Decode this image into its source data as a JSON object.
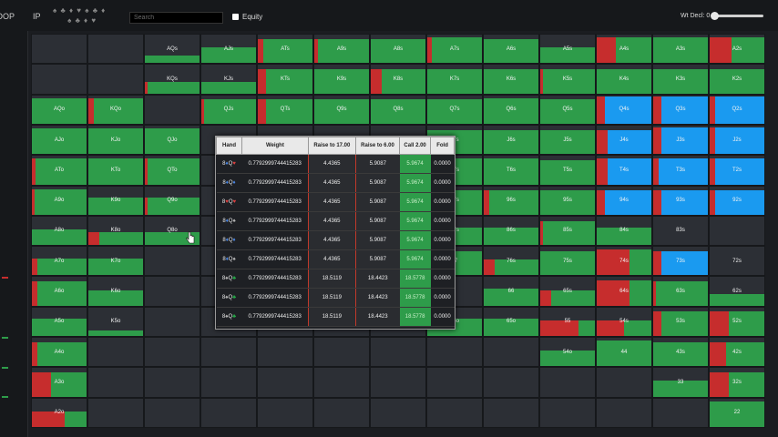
{
  "header": {
    "position": "IP",
    "left_label": "OOP",
    "search_placeholder": "Search",
    "equity_label": "Equity",
    "weight_label": "Wt Decl: 0"
  },
  "colors": {
    "green": "#2e9c4a",
    "red": "#c62d2d",
    "blue": "#1a9af0",
    "empty": "#2c2f35"
  },
  "grid": {
    "rows": [
      [
        "",
        "",
        "AQs",
        "AJs",
        "ATs",
        "A9s",
        "A8s",
        "A7s",
        "A6s",
        "A5s",
        "A4s",
        "A3s",
        "A2s"
      ],
      [
        "",
        "",
        "KQs",
        "KJs",
        "KTs",
        "K9s",
        "K8s",
        "K7s",
        "K6s",
        "K5s",
        "K4s",
        "K3s",
        "K2s"
      ],
      [
        "AQo",
        "KQo",
        "",
        "QJs",
        "QTs",
        "Q9s",
        "Q8s",
        "Q7s",
        "Q6s",
        "Q5s",
        "Q4s",
        "Q3s",
        "Q2s"
      ],
      [
        "AJo",
        "KJo",
        "QJo",
        "",
        "",
        "",
        "",
        "J7s",
        "J6s",
        "J5s",
        "J4s",
        "J3s",
        "J2s"
      ],
      [
        "ATo",
        "KTo",
        "QTo",
        "",
        "",
        "",
        "",
        "T7s",
        "T6s",
        "T5s",
        "T4s",
        "T3s",
        "T2s"
      ],
      [
        "A9o",
        "K9o",
        "Q9o",
        "",
        "",
        "",
        "",
        "97s",
        "96s",
        "95s",
        "94s",
        "93s",
        "92s"
      ],
      [
        "A8o",
        "K8o",
        "Q8o",
        "",
        "",
        "",
        "",
        "87s",
        "86s",
        "85s",
        "84s",
        "83s",
        ""
      ],
      [
        "A7o",
        "K7o",
        "",
        "",
        "",
        "",
        "",
        "77",
        "76s",
        "75s",
        "74s",
        "73s",
        "72s"
      ],
      [
        "A6o",
        "K6o",
        "",
        "",
        "",
        "",
        "",
        "",
        "66",
        "65s",
        "64s",
        "63s",
        "62s"
      ],
      [
        "A5o",
        "K5o",
        "",
        "",
        "",
        "",
        "",
        "75o",
        "65o",
        "55",
        "54s",
        "53s",
        "52s"
      ],
      [
        "A4o",
        "",
        "",
        "",
        "",
        "",
        "",
        "",
        "",
        "54o",
        "44",
        "43s",
        "42s"
      ],
      [
        "A3o",
        "",
        "",
        "",
        "",
        "",
        "",
        "",
        "",
        "",
        "",
        "33",
        "32s"
      ],
      [
        "A2o",
        "",
        "",
        "",
        "",
        "",
        "",
        "",
        "",
        "",
        "",
        "",
        "22"
      ]
    ]
  },
  "tooltip": {
    "headers": [
      "Hand",
      "Weight",
      "Raise to 17.00",
      "Raise to 6.00",
      "Call 2.00",
      "Fold"
    ],
    "rows": [
      {
        "h1": "8",
        "s1": "♦",
        "h2": "Q",
        "s2": "♥",
        "weight": "0.7792999744415283",
        "raise17": "4.4365",
        "raise6": "5.9087",
        "call": "5.9674",
        "fold": "0.0000"
      },
      {
        "h1": "8",
        "s1": "♦",
        "h2": "Q",
        "s2": "♦",
        "weight": "0.7792999744415283",
        "raise17": "4.4365",
        "raise6": "5.9087",
        "call": "5.9674",
        "fold": "0.0000"
      },
      {
        "h1": "8",
        "s1": "♥",
        "h2": "Q",
        "s2": "♥",
        "weight": "0.7792999744415283",
        "raise17": "4.4365",
        "raise6": "5.9087",
        "call": "5.9674",
        "fold": "0.0000"
      },
      {
        "h1": "8",
        "s1": "♦",
        "h2": "Q",
        "s2": "♠",
        "weight": "0.7792999744415283",
        "raise17": "4.4365",
        "raise6": "5.9087",
        "call": "5.9674",
        "fold": "0.0000"
      },
      {
        "h1": "8",
        "s1": "♦",
        "h2": "Q",
        "s2": "♦",
        "weight": "0.7792999744415283",
        "raise17": "4.4365",
        "raise6": "5.9087",
        "call": "5.9674",
        "fold": "0.0000"
      },
      {
        "h1": "8",
        "s1": "♦",
        "h2": "Q",
        "s2": "♠",
        "weight": "0.7792999744415283",
        "raise17": "4.4365",
        "raise6": "5.9087",
        "call": "5.9674",
        "fold": "0.0000"
      },
      {
        "h1": "8",
        "s1": "♠",
        "h2": "Q",
        "s2": "♣",
        "weight": "0.7792999744415283",
        "raise17": "18.5119",
        "raise6": "18.4423",
        "call": "18.5778",
        "fold": "0.0000"
      },
      {
        "h1": "8",
        "s1": "♠",
        "h2": "Q",
        "s2": "♣",
        "weight": "0.7792999744415283",
        "raise17": "18.5119",
        "raise6": "18.4423",
        "call": "18.5778",
        "fold": "0.0000"
      },
      {
        "h1": "8",
        "s1": "♠",
        "h2": "Q",
        "s2": "♣",
        "weight": "0.7792999744415283",
        "raise17": "18.5119",
        "raise6": "18.4423",
        "call": "18.5778",
        "fold": "0.0000"
      }
    ]
  }
}
